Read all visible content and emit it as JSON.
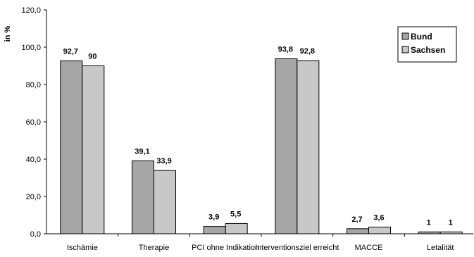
{
  "chart_data": {
    "type": "bar",
    "title": "",
    "xlabel": "",
    "ylabel": "in %",
    "ylim": [
      0,
      120
    ],
    "ytick_step": 20,
    "ytick_labels": [
      "0,0",
      "20,0",
      "40,0",
      "60,0",
      "80,0",
      "100,0",
      "120,0"
    ],
    "categories": [
      "Ischämie",
      "Therapie",
      "PCI ohne Indikation",
      "Interventionsziel erreicht",
      "MACCE",
      "Letalität"
    ],
    "series": [
      {
        "name": "Bund",
        "color": "#a6a6a6",
        "values": [
          92.7,
          39.1,
          3.9,
          93.8,
          2.7,
          1
        ],
        "labels": [
          "92,7",
          "39,1",
          "3,9",
          "93,8",
          "2,7",
          "1"
        ]
      },
      {
        "name": "Sachsen",
        "color": "#c8c8c8",
        "values": [
          90,
          33.9,
          5.5,
          92.8,
          3.6,
          1
        ],
        "labels": [
          "90",
          "33,9",
          "5,5",
          "92,8",
          "3,6",
          "1"
        ]
      }
    ],
    "legend": {
      "position": "top-right"
    },
    "grid": false
  }
}
